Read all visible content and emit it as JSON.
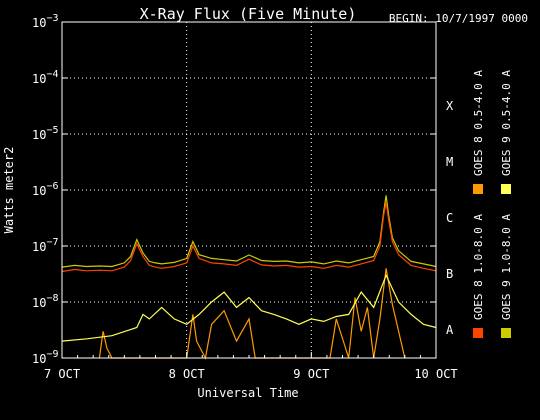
{
  "chart_data": {
    "type": "line",
    "title": "X-Ray Flux (Five Minute)",
    "begin_label": "BEGIN: 10/7/1997 0000",
    "xlabel": "Universal Time",
    "ylabel": "Watts meter2",
    "y_scale": "log",
    "ylim": [
      1e-09,
      0.001
    ],
    "xlim_days": [
      0,
      3
    ],
    "x_ticks": [
      {
        "value": 0,
        "label": "7 OCT"
      },
      {
        "value": 1,
        "label": "8 OCT"
      },
      {
        "value": 2,
        "label": "9 OCT"
      },
      {
        "value": 3,
        "label": "10 OCT"
      }
    ],
    "y_ticks": [
      {
        "exp": -9,
        "label": "10",
        "sup": "−9"
      },
      {
        "exp": -8,
        "label": "10",
        "sup": "−8"
      },
      {
        "exp": -7,
        "label": "10",
        "sup": "−7"
      },
      {
        "exp": -6,
        "label": "10",
        "sup": "−6"
      },
      {
        "exp": -5,
        "label": "10",
        "sup": "−5"
      },
      {
        "exp": -4,
        "label": "10",
        "sup": "−4"
      },
      {
        "exp": -3,
        "label": "10",
        "sup": "−3"
      }
    ],
    "flare_classes": [
      {
        "label": "X",
        "exp": -4
      },
      {
        "label": "M",
        "exp": -5
      },
      {
        "label": "C",
        "exp": -6
      },
      {
        "label": "B",
        "exp": -7
      },
      {
        "label": "A",
        "exp": -8
      }
    ],
    "grid": true,
    "legend_position": "right, rotated vertical",
    "series": [
      {
        "name": "GOES 8 1.0-8.0 A",
        "color": "#ff4400",
        "x": [
          0,
          0.1,
          0.2,
          0.3,
          0.4,
          0.5,
          0.55,
          0.6,
          0.65,
          0.7,
          0.75,
          0.8,
          0.9,
          1.0,
          1.05,
          1.1,
          1.2,
          1.3,
          1.4,
          1.5,
          1.6,
          1.7,
          1.8,
          1.9,
          2.0,
          2.1,
          2.2,
          2.3,
          2.4,
          2.5,
          2.55,
          2.58,
          2.6,
          2.62,
          2.65,
          2.7,
          2.8,
          2.9,
          3.0
        ],
        "y": [
          3.5e-08,
          3.8e-08,
          3.6e-08,
          3.7e-08,
          3.6e-08,
          4.2e-08,
          5.5e-08,
          1.1e-07,
          6.5e-08,
          4.5e-08,
          4.2e-08,
          4e-08,
          4.3e-08,
          5e-08,
          1e-07,
          6e-08,
          5e-08,
          4.8e-08,
          4.5e-08,
          5.8e-08,
          4.6e-08,
          4.4e-08,
          4.5e-08,
          4.2e-08,
          4.3e-08,
          4e-08,
          4.5e-08,
          4.2e-08,
          4.8e-08,
          5.5e-08,
          1e-07,
          3.5e-07,
          6e-07,
          3e-07,
          1.2e-07,
          7e-08,
          4.5e-08,
          4e-08,
          3.6e-08
        ]
      },
      {
        "name": "GOES 8 0.5-4.0 A",
        "color": "#ff9900",
        "x": [
          0.3,
          0.33,
          0.36,
          0.4,
          1.0,
          1.05,
          1.08,
          1.15,
          1.2,
          1.3,
          1.4,
          1.5,
          1.55,
          2.15,
          2.2,
          2.3,
          2.35,
          2.4,
          2.45,
          2.5,
          2.55,
          2.6,
          2.65,
          2.7,
          2.75
        ],
        "y": [
          1e-09,
          3e-09,
          1.5e-09,
          1e-09,
          1e-09,
          6e-09,
          2e-09,
          1e-09,
          4e-09,
          7e-09,
          2e-09,
          5e-09,
          1e-09,
          1e-09,
          5e-09,
          1e-09,
          1.2e-08,
          3e-09,
          8e-09,
          1e-09,
          5e-09,
          4e-08,
          9e-09,
          3e-09,
          1e-09
        ]
      },
      {
        "name": "GOES 9 0.5-4.0 A",
        "color": "#ffff55",
        "x": [
          0,
          0.2,
          0.4,
          0.6,
          0.65,
          0.7,
          0.8,
          0.9,
          1.0,
          1.1,
          1.2,
          1.3,
          1.4,
          1.5,
          1.6,
          1.7,
          1.8,
          1.9,
          2.0,
          2.1,
          2.2,
          2.3,
          2.4,
          2.5,
          2.6,
          2.7,
          2.8,
          2.9,
          3.0
        ],
        "y": [
          2e-09,
          2.2e-09,
          2.5e-09,
          3.5e-09,
          6e-09,
          5e-09,
          8e-09,
          5e-09,
          4e-09,
          6e-09,
          1e-08,
          1.5e-08,
          8e-09,
          1.2e-08,
          7e-09,
          6e-09,
          5e-09,
          4e-09,
          5e-09,
          4.5e-09,
          5.5e-09,
          6e-09,
          1.5e-08,
          8e-09,
          3e-08,
          1e-08,
          6e-09,
          4e-09,
          3.5e-09
        ]
      },
      {
        "name": "GOES 9 1.0-8.0 A",
        "color": "#cccc00",
        "x": [
          0,
          0.1,
          0.2,
          0.3,
          0.4,
          0.5,
          0.55,
          0.6,
          0.65,
          0.7,
          0.75,
          0.8,
          0.9,
          1.0,
          1.05,
          1.1,
          1.2,
          1.3,
          1.4,
          1.5,
          1.6,
          1.7,
          1.8,
          1.9,
          2.0,
          2.1,
          2.2,
          2.3,
          2.4,
          2.5,
          2.55,
          2.58,
          2.6,
          2.62,
          2.65,
          2.7,
          2.8,
          2.9,
          3.0
        ],
        "y": [
          4.2e-08,
          4.5e-08,
          4.3e-08,
          4.4e-08,
          4.3e-08,
          5e-08,
          6.5e-08,
          1.3e-07,
          7.5e-08,
          5.3e-08,
          5e-08,
          4.8e-08,
          5.1e-08,
          6e-08,
          1.2e-07,
          7e-08,
          6e-08,
          5.7e-08,
          5.4e-08,
          6.9e-08,
          5.5e-08,
          5.3e-08,
          5.4e-08,
          5e-08,
          5.2e-08,
          4.8e-08,
          5.4e-08,
          5e-08,
          5.7e-08,
          6.5e-08,
          1.2e-07,
          4e-07,
          8e-07,
          3.6e-07,
          1.4e-07,
          8.2e-08,
          5.3e-08,
          4.8e-08,
          4.3e-08
        ]
      }
    ]
  }
}
